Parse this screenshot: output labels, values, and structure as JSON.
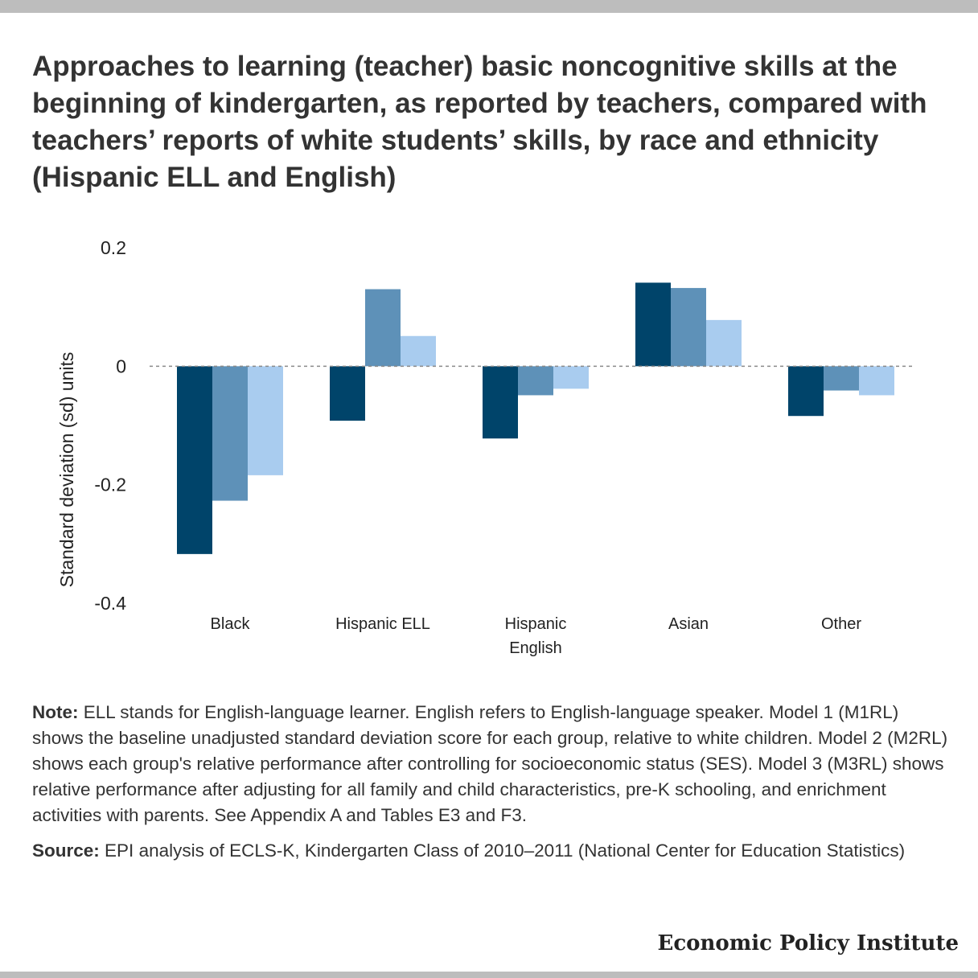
{
  "title": "Approaches to learning (teacher) basic noncognitive skills at the beginning of kindergarten, as reported by teachers, compared with teachers’ reports of white students’ skills, by race and ethnicity (Hispanic ELL and English)",
  "chart_data": {
    "type": "bar",
    "categories": [
      [
        "Black"
      ],
      [
        "Hispanic ELL"
      ],
      [
        "Hispanic",
        "English"
      ],
      [
        "Asian"
      ],
      [
        "Other"
      ]
    ],
    "series": [
      {
        "color": "#00446a",
        "values": [
          -0.317,
          -0.092,
          -0.122,
          0.141,
          -0.084
        ]
      },
      {
        "color": "#5e91b8",
        "values": [
          -0.227,
          0.13,
          -0.049,
          0.132,
          -0.041
        ]
      },
      {
        "color": "#a9ccef",
        "values": [
          -0.184,
          0.051,
          -0.038,
          0.078,
          -0.049
        ]
      }
    ],
    "ylabel": "Standard deviation (sd) units",
    "yticks": [
      0.2,
      0,
      -0.2,
      -0.4
    ],
    "ytick_labels": [
      "0.2",
      "0",
      "-0.2",
      "-0.4"
    ],
    "ylim": [
      -0.4,
      0.2
    ],
    "zero_line": "dashed",
    "legend": "none",
    "grid": false
  },
  "note": {
    "label": "Note:",
    "text": "ELL stands for English-language learner. English refers to English-language speaker. Model 1 (M1RL) shows the baseline unadjusted standard deviation score for each group, relative to white children. Model 2 (M2RL) shows each group's relative performance after controlling for socioeconomic status (SES). Model 3 (M3RL) shows relative performance after adjusting for all family and child characteristics, pre-K schooling, and enrichment activities with parents. See Appendix A and Tables E3 and F3."
  },
  "source": {
    "label": "Source:",
    "text": "EPI analysis of ECLS-K, Kindergarten Class of 2010–2011 (National Center for Education Statistics)"
  },
  "brand": "Economic Policy Institute",
  "colors": {
    "top_bar": "#bdbdbd",
    "text": "#333333"
  }
}
